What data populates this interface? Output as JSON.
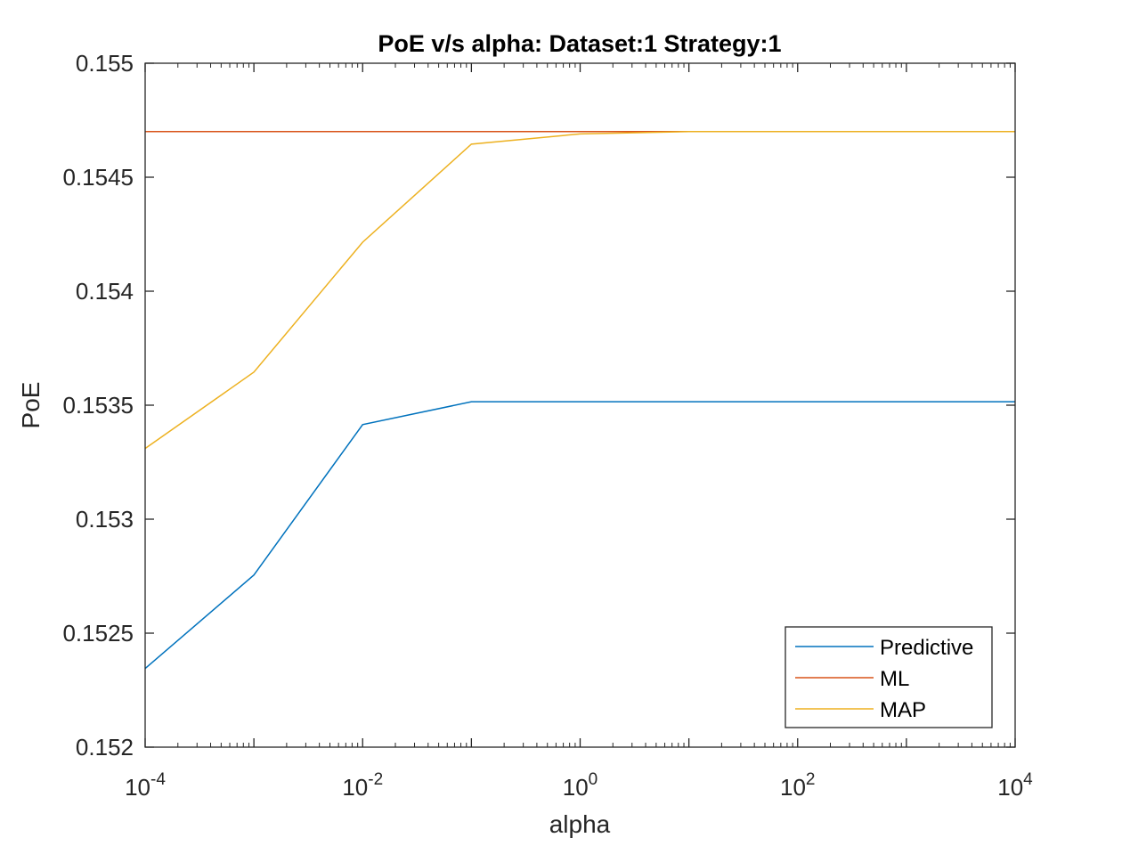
{
  "chart_data": {
    "type": "line",
    "title": "PoE v/s alpha: Dataset:1 Strategy:1",
    "xlabel": "alpha",
    "ylabel": "PoE",
    "xscale": "log",
    "xlim": [
      0.0001,
      10000
    ],
    "ylim": [
      0.152,
      0.155
    ],
    "x": [
      0.0001,
      0.001,
      0.01,
      0.1,
      1,
      10,
      100,
      1000,
      10000
    ],
    "x_tick_labels": [
      {
        "base": "10",
        "exp": "-4"
      },
      {
        "base": "10",
        "exp": "-2"
      },
      {
        "base": "10",
        "exp": "0"
      },
      {
        "base": "10",
        "exp": "2"
      },
      {
        "base": "10",
        "exp": "4"
      }
    ],
    "x_tick_values": [
      0.0001,
      0.01,
      1,
      100,
      10000
    ],
    "y_tick_values": [
      0.152,
      0.1525,
      0.153,
      0.1535,
      0.154,
      0.1545,
      0.155
    ],
    "y_tick_labels": [
      "0.152",
      "0.1525",
      "0.153",
      "0.1535",
      "0.154",
      "0.1545",
      "0.155"
    ],
    "grid": false,
    "legend_position": "bottom-right",
    "series": [
      {
        "name": "Predictive",
        "color": "#0072BD",
        "values": [
          0.152345,
          0.152755,
          0.153415,
          0.153515,
          0.153515,
          0.153515,
          0.153515,
          0.153515,
          0.153515
        ]
      },
      {
        "name": "ML",
        "color": "#D95319",
        "values": [
          0.1547,
          0.1547,
          0.1547,
          0.1547,
          0.1547,
          0.1547,
          0.1547,
          0.1547,
          0.1547
        ]
      },
      {
        "name": "MAP",
        "color": "#EDB120",
        "values": [
          0.15331,
          0.153645,
          0.154215,
          0.154645,
          0.15469,
          0.1547,
          0.1547,
          0.1547,
          0.1547
        ]
      }
    ]
  }
}
